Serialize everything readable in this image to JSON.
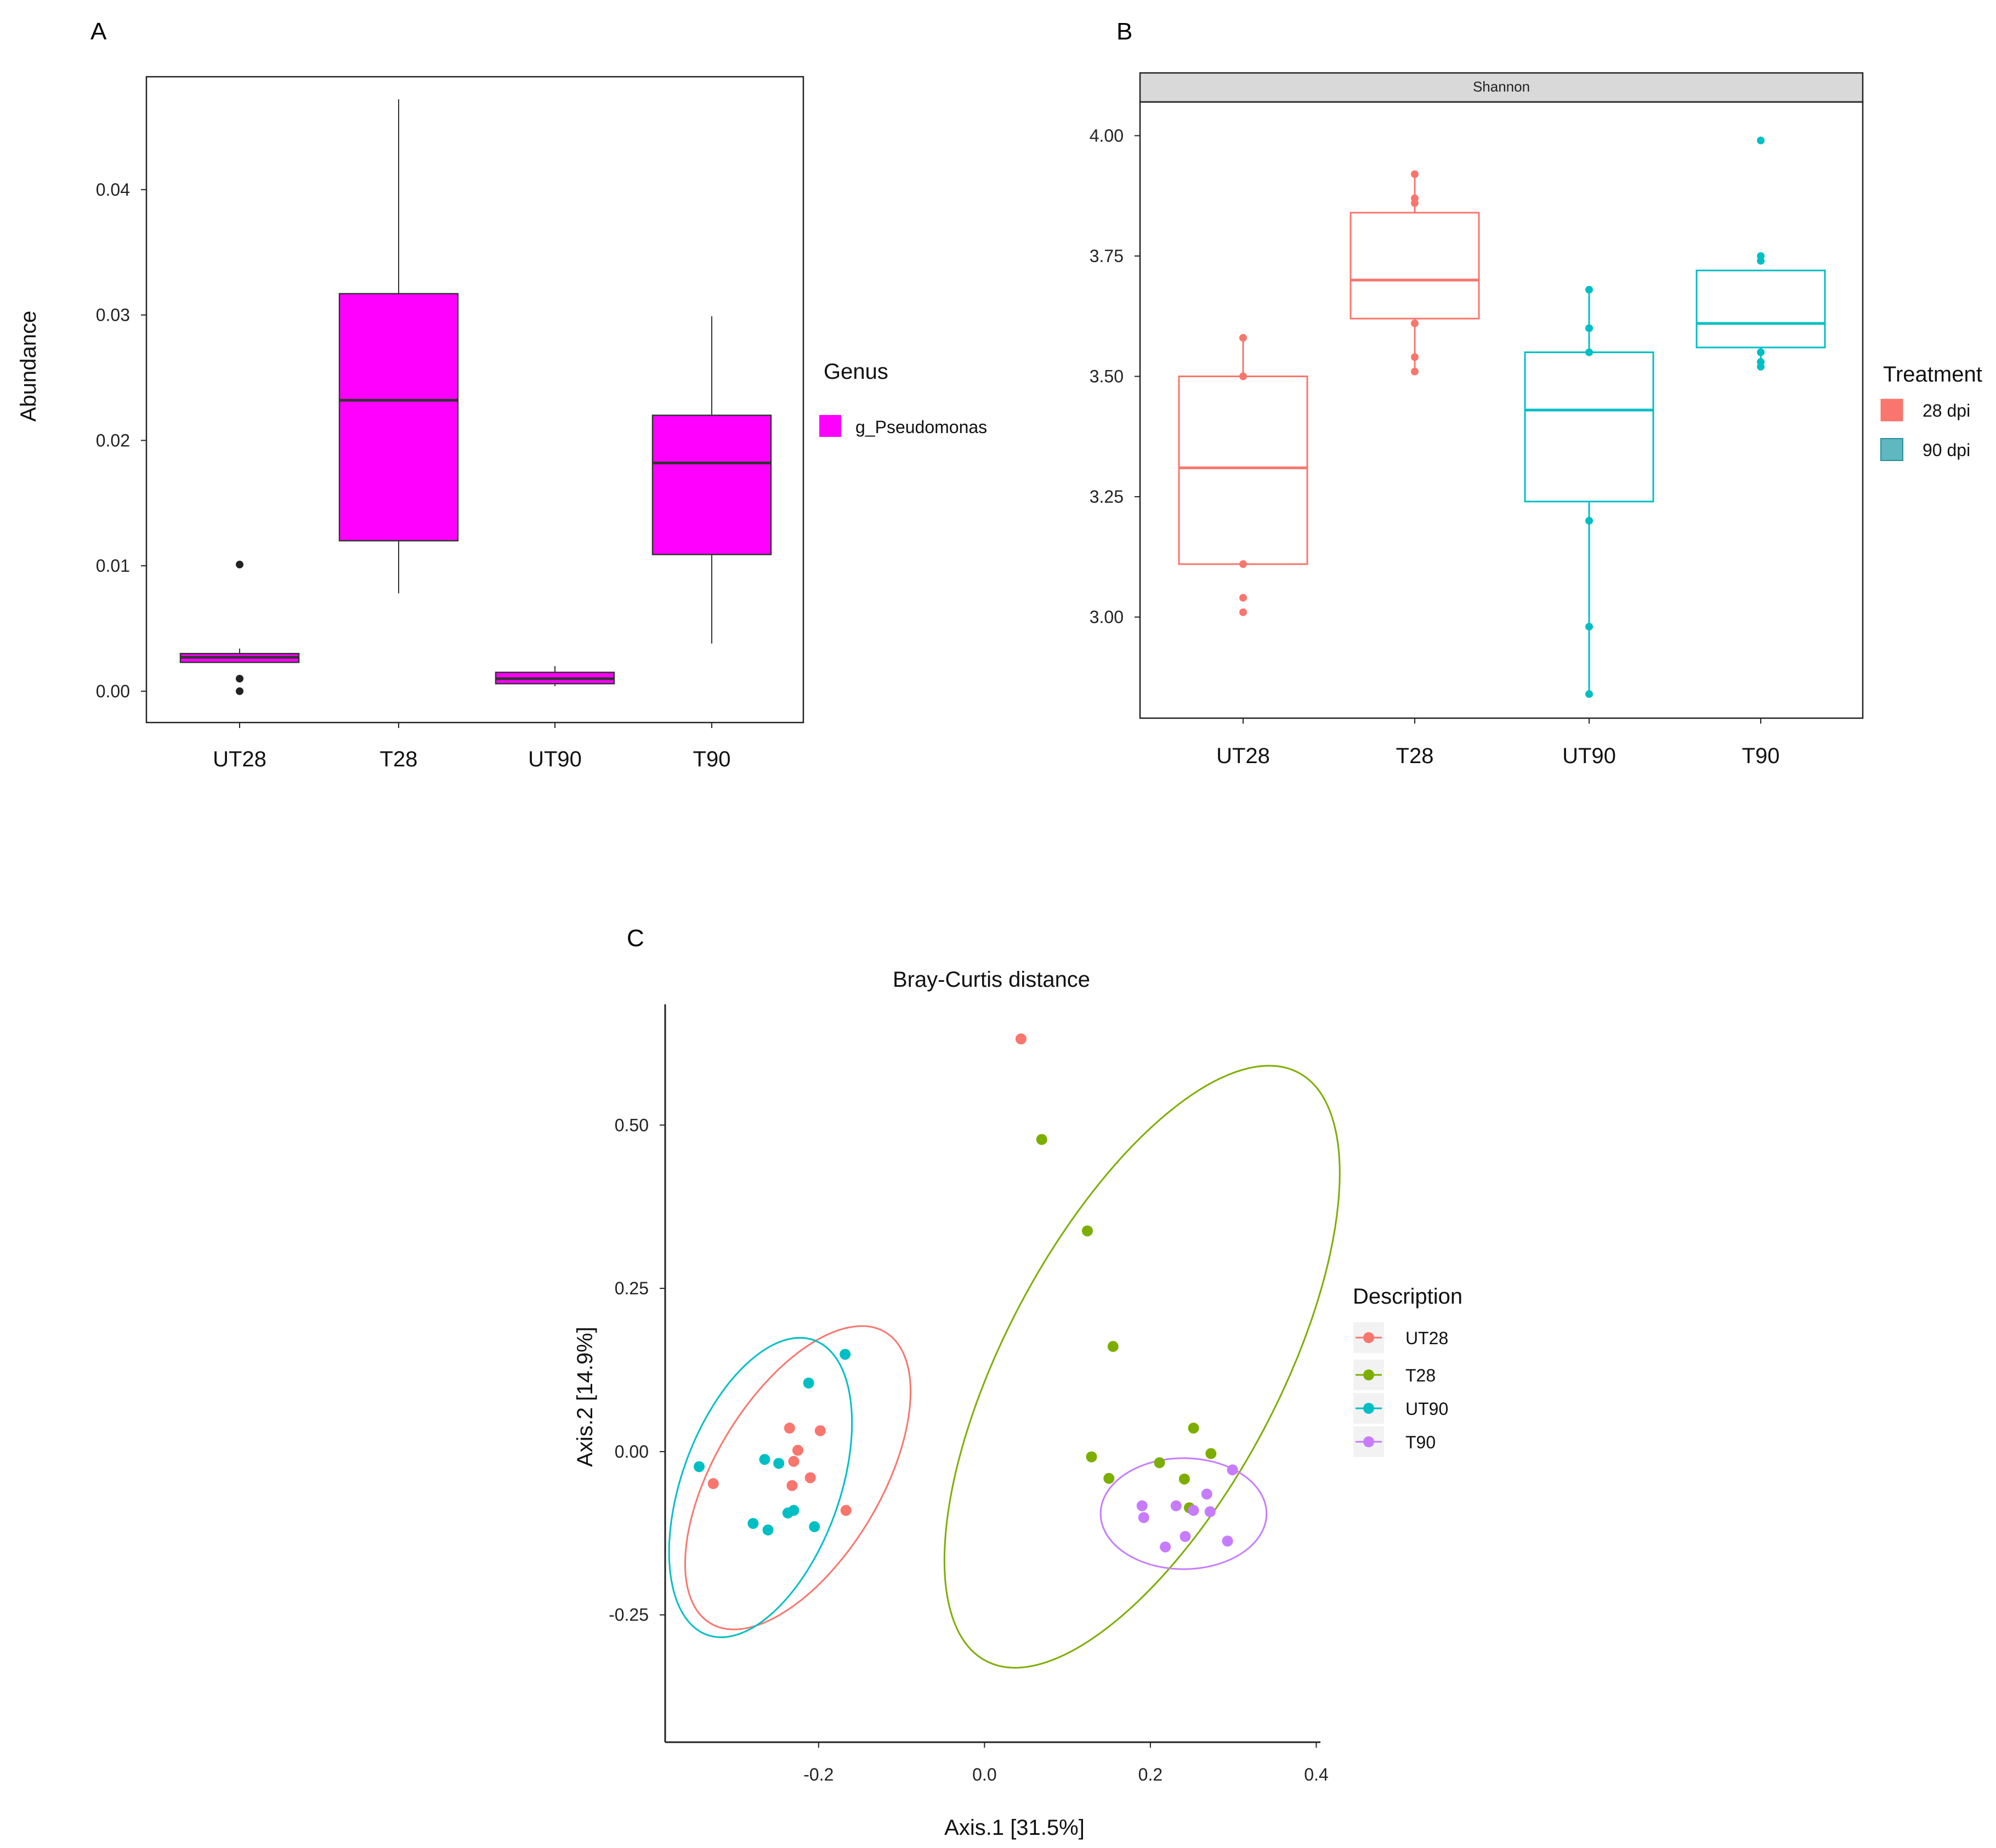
{
  "chart_data": [
    {
      "panel": "A",
      "type": "boxplot",
      "ylabel": "Abundance",
      "ylim": [
        -0.0025,
        0.049
      ],
      "yticks": [
        "0.00",
        "0.01",
        "0.02",
        "0.03",
        "0.04"
      ],
      "categories": [
        "UT28",
        "T28",
        "UT90",
        "T90"
      ],
      "legend": {
        "title": "Genus",
        "items": [
          "g_Pseudomonas"
        ],
        "position": "right"
      },
      "colors": {
        "fill": "#ff00ff",
        "line": "#333333"
      },
      "boxes": [
        {
          "category": "UT28",
          "lower": 0.0023,
          "q1": 0.0023,
          "median": 0.0027,
          "q3": 0.003,
          "upper": 0.0034,
          "outliers": [
            0.0101,
            0.001,
            0.0
          ]
        },
        {
          "category": "T28",
          "lower": 0.0078,
          "q1": 0.012,
          "median": 0.0232,
          "q3": 0.0317,
          "upper": 0.0472,
          "outliers": []
        },
        {
          "category": "UT90",
          "lower": 0.0004,
          "q1": 0.0006,
          "median": 0.001,
          "q3": 0.0015,
          "upper": 0.002,
          "outliers": []
        },
        {
          "category": "T90",
          "lower": 0.0038,
          "q1": 0.0109,
          "median": 0.0182,
          "q3": 0.022,
          "upper": 0.0299,
          "outliers": []
        }
      ]
    },
    {
      "panel": "B",
      "type": "boxplot",
      "strip_label": "Shannon",
      "ylim": [
        2.79,
        4.07
      ],
      "yticks": [
        "3.00",
        "3.25",
        "3.50",
        "3.75",
        "4.00"
      ],
      "categories": [
        "UT28",
        "T28",
        "UT90",
        "T90"
      ],
      "legend": {
        "title": "Treatment",
        "items": [
          {
            "label": "28 dpi",
            "color": "#f8766d"
          },
          {
            "label": "90 dpi",
            "color": "#00bfc4"
          }
        ],
        "position": "right"
      },
      "boxes": [
        {
          "category": "UT28",
          "treatment": "28 dpi",
          "lower": 3.11,
          "q1": 3.11,
          "median": 3.31,
          "q3": 3.5,
          "upper": 3.58,
          "points": [
            3.58,
            3.5,
            3.11,
            3.04,
            3.01
          ]
        },
        {
          "category": "T28",
          "treatment": "28 dpi",
          "lower": 3.51,
          "q1": 3.62,
          "median": 3.7,
          "q3": 3.84,
          "upper": 3.92,
          "points": [
            3.92,
            3.87,
            3.86,
            3.61,
            3.54,
            3.51
          ]
        },
        {
          "category": "UT90",
          "treatment": "90 dpi",
          "lower": 2.84,
          "q1": 3.24,
          "median": 3.43,
          "q3": 3.55,
          "upper": 3.68,
          "points": [
            3.68,
            3.6,
            3.55,
            3.2,
            2.98,
            2.84
          ]
        },
        {
          "category": "T90",
          "treatment": "90 dpi",
          "lower": 3.52,
          "q1": 3.56,
          "median": 3.61,
          "q3": 3.72,
          "upper": 3.72,
          "points": [
            3.99,
            3.75,
            3.74,
            3.55,
            3.53,
            3.52
          ]
        }
      ]
    },
    {
      "panel": "C",
      "type": "scatter",
      "title": "Bray-Curtis distance",
      "xlabel": "Axis.1 [31.5%]",
      "ylabel": "Axis.2   [14.9%]",
      "xlim": [
        -0.385,
        0.405
      ],
      "ylim": [
        -0.445,
        0.685
      ],
      "xticks": [
        "-0.2",
        "0.0",
        "0.2",
        "0.4"
      ],
      "yticks": [
        "-0.25",
        "0.00",
        "0.25",
        "0.50"
      ],
      "legend": {
        "title": "Description",
        "items": [
          {
            "label": "UT28",
            "color": "#f8766d"
          },
          {
            "label": "T28",
            "color": "#7cae00"
          },
          {
            "label": "UT90",
            "color": "#00bfc4"
          },
          {
            "label": "T90",
            "color": "#c77cff"
          }
        ],
        "position": "right"
      },
      "series": [
        {
          "name": "UT28",
          "color": "#f8766d",
          "points": [
            [
              0.044,
              0.632
            ],
            [
              -0.235,
              0.036
            ],
            [
              -0.198,
              0.032
            ],
            [
              -0.225,
              0.002
            ],
            [
              -0.23,
              -0.015
            ],
            [
              -0.21,
              -0.04
            ],
            [
              -0.232,
              -0.052
            ],
            [
              -0.327,
              -0.049
            ],
            [
              -0.167,
              -0.09
            ]
          ],
          "ellipse": {
            "cx": -0.225,
            "cy": -0.04,
            "rx": 0.1,
            "ry": 0.26,
            "angle_deg": 31
          }
        },
        {
          "name": "T28",
          "color": "#7cae00",
          "points": [
            [
              0.069,
              0.478
            ],
            [
              0.124,
              0.338
            ],
            [
              0.155,
              0.161
            ],
            [
              0.252,
              0.036
            ],
            [
              0.129,
              -0.008
            ],
            [
              0.273,
              -0.003
            ],
            [
              0.211,
              -0.017
            ],
            [
              0.15,
              -0.041
            ],
            [
              0.241,
              -0.042
            ],
            [
              0.247,
              -0.086
            ]
          ],
          "ellipse": {
            "cx": 0.19,
            "cy": 0.13,
            "rx": 0.165,
            "ry": 0.51,
            "angle_deg": 28
          }
        },
        {
          "name": "UT90",
          "color": "#00bfc4",
          "points": [
            [
              -0.168,
              0.149
            ],
            [
              -0.212,
              0.105
            ],
            [
              -0.344,
              -0.023
            ],
            [
              -0.265,
              -0.012
            ],
            [
              -0.248,
              -0.018
            ],
            [
              -0.23,
              -0.09
            ],
            [
              -0.237,
              -0.094
            ],
            [
              -0.279,
              -0.11
            ],
            [
              -0.261,
              -0.12
            ],
            [
              -0.205,
              -0.115
            ]
          ],
          "ellipse": {
            "cx": -0.27,
            "cy": -0.055,
            "rx": 0.095,
            "ry": 0.24,
            "angle_deg": 20
          }
        },
        {
          "name": "T90",
          "color": "#c77cff",
          "points": [
            [
              0.299,
              -0.028
            ],
            [
              0.268,
              -0.065
            ],
            [
              0.19,
              -0.083
            ],
            [
              0.231,
              -0.083
            ],
            [
              0.252,
              -0.09
            ],
            [
              0.272,
              -0.092
            ],
            [
              0.192,
              -0.101
            ],
            [
              0.242,
              -0.13
            ],
            [
              0.293,
              -0.137
            ],
            [
              0.218,
              -0.146
            ]
          ],
          "ellipse": {
            "cx": 0.24,
            "cy": -0.095,
            "rx": 0.1,
            "ry": 0.085,
            "angle_deg": 0
          }
        }
      ]
    }
  ]
}
